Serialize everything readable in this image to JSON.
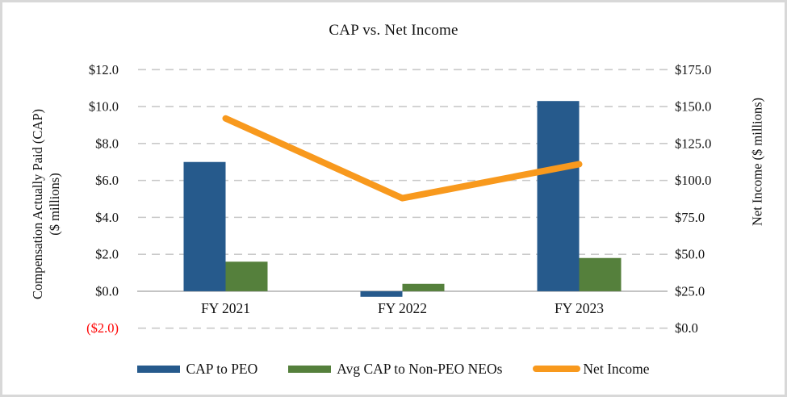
{
  "chart_data": {
    "type": "combo-bar-line",
    "title": "CAP vs. Net Income",
    "categories": [
      "FY 2021",
      "FY 2022",
      "FY 2023"
    ],
    "series": [
      {
        "name": "CAP to PEO",
        "type": "bar",
        "axis": "left",
        "color": "#265A8C",
        "values": [
          7.0,
          -0.3,
          10.3
        ]
      },
      {
        "name": "Avg CAP to Non-PEO NEOs",
        "type": "bar",
        "axis": "left",
        "color": "#55803C",
        "values": [
          1.6,
          0.4,
          1.8
        ]
      },
      {
        "name": "Net Income",
        "type": "line",
        "axis": "right",
        "color": "#F8991D",
        "values": [
          142.0,
          88.0,
          111.0
        ]
      }
    ],
    "left_axis": {
      "title_lines": [
        "Compensation Actually Paid (CAP)",
        "($ millions)"
      ],
      "min": -2.0,
      "max": 12.0,
      "step": 2.0,
      "ticks": [
        {
          "label": "($2.0)",
          "value": -2,
          "color": "#FF0000"
        },
        {
          "label": "$0.0",
          "value": 0
        },
        {
          "label": "$2.0",
          "value": 2
        },
        {
          "label": "$4.0",
          "value": 4
        },
        {
          "label": "$6.0",
          "value": 6
        },
        {
          "label": "$8.0",
          "value": 8
        },
        {
          "label": "$10.0",
          "value": 10
        },
        {
          "label": "$12.0",
          "value": 12
        }
      ]
    },
    "right_axis": {
      "title": "Net Income ($ millions)",
      "min": 0.0,
      "max": 175.0,
      "step": 25.0,
      "ticks": [
        {
          "label": "$0.0",
          "value": 0
        },
        {
          "label": "$25.0",
          "value": 25
        },
        {
          "label": "$50.0",
          "value": 50
        },
        {
          "label": "$75.0",
          "value": 75
        },
        {
          "label": "$100.0",
          "value": 100
        },
        {
          "label": "$125.0",
          "value": 125
        },
        {
          "label": "$150.0",
          "value": 150
        },
        {
          "label": "$175.0",
          "value": 175
        }
      ]
    },
    "grid": {
      "horizontal": "dashed",
      "color": "#C9C9C9"
    },
    "axis_line_color": "#BEBEBE",
    "text_color": "#111111",
    "negative_tick_color": "#FF0000",
    "legend": {
      "position": "bottom"
    }
  }
}
